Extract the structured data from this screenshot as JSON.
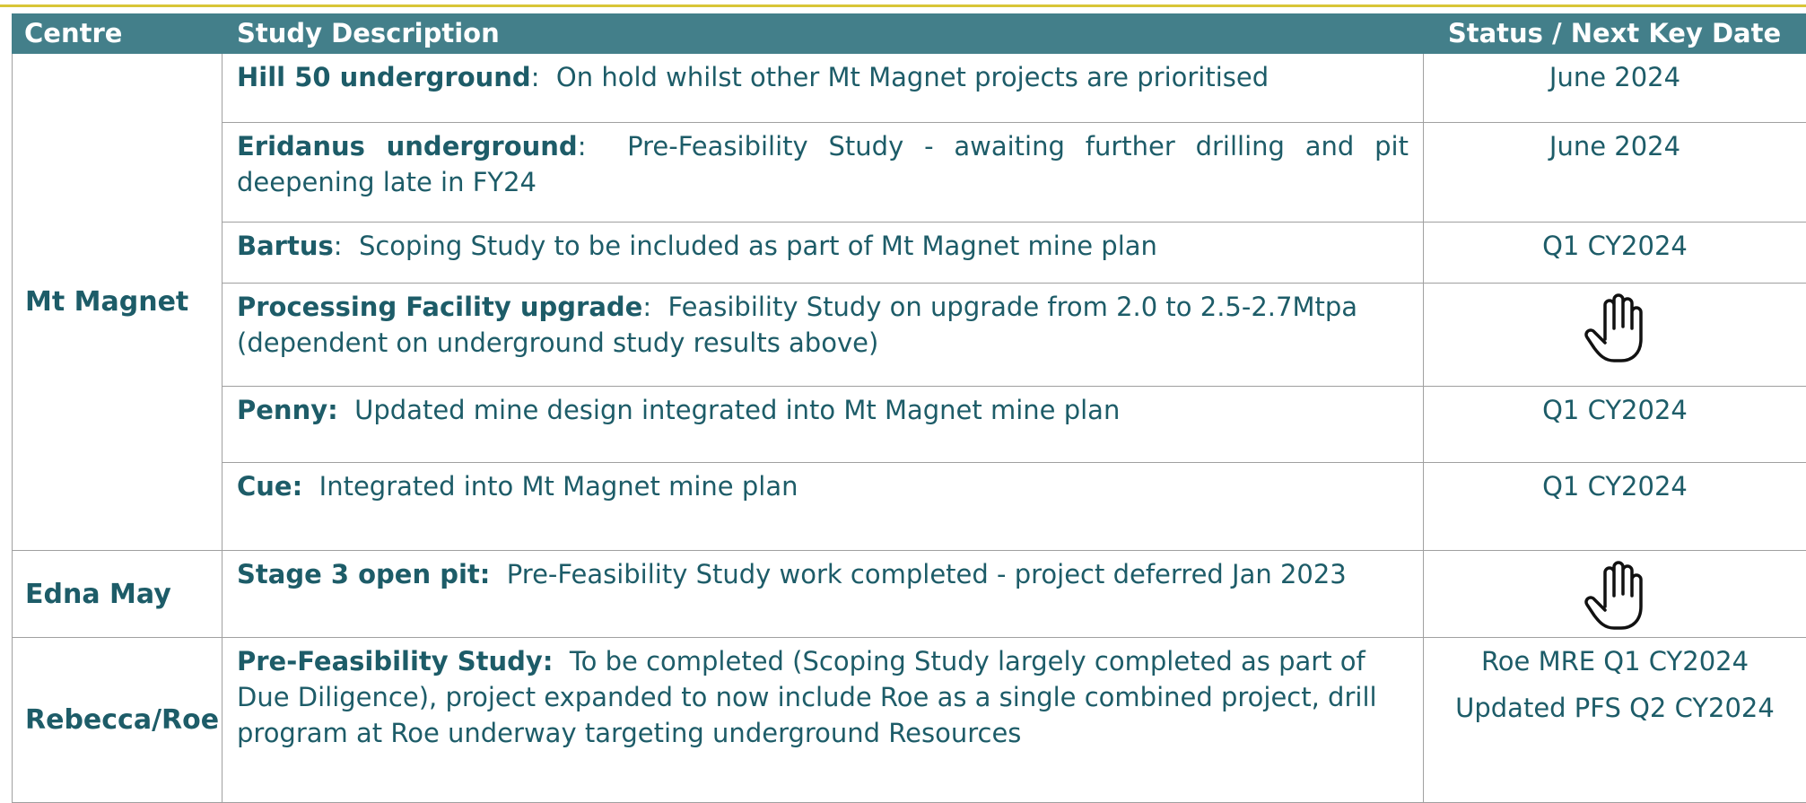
{
  "header": {
    "centre": "Centre",
    "description": "Study Description",
    "status": "Status / Next Key Date"
  },
  "groups": [
    {
      "centre": "Mt Magnet",
      "rows": [
        {
          "title": "Hill 50 underground",
          "text": ":  On hold whilst other Mt Magnet projects are prioritised",
          "status": [
            "June 2024"
          ]
        },
        {
          "title": "Eridanus underground",
          "text": ":  Pre-Feasibility Study - awaiting further drilling and pit deepening late in FY24",
          "status": [
            "June 2024"
          ]
        },
        {
          "title": "Bartus",
          "text": ":  Scoping Study to be included as part of Mt Magnet mine plan",
          "status": [
            "Q1 CY2024"
          ]
        },
        {
          "title": "Processing Facility upgrade",
          "text": ":  Feasibility Study on upgrade from 2.0 to 2.5-2.7Mtpa (dependent on underground study results above)"
        },
        {
          "title": "Penny:",
          "text": "  Updated mine design integrated into Mt Magnet mine plan",
          "status": [
            "Q1 CY2024"
          ]
        },
        {
          "title": "Cue:",
          "text": "  Integrated into Mt Magnet mine plan",
          "status": [
            "Q1 CY2024"
          ]
        }
      ]
    },
    {
      "centre": "Edna May",
      "rows": [
        {
          "title": "Stage 3 open pit:",
          "text": "  Pre-Feasibility Study work completed - project deferred Jan 2023"
        }
      ]
    },
    {
      "centre": "Rebecca/Roe",
      "rows": [
        {
          "title": "Pre-Feasibility Study:",
          "text": "  To be completed (Scoping Study largely completed as part of Due Diligence), project expanded to now include Roe as a single combined project, drill program at Roe underway targeting underground Resources",
          "status": [
            "Roe MRE Q1 CY2024",
            "Updated PFS Q2 CY2024"
          ]
        }
      ]
    }
  ]
}
